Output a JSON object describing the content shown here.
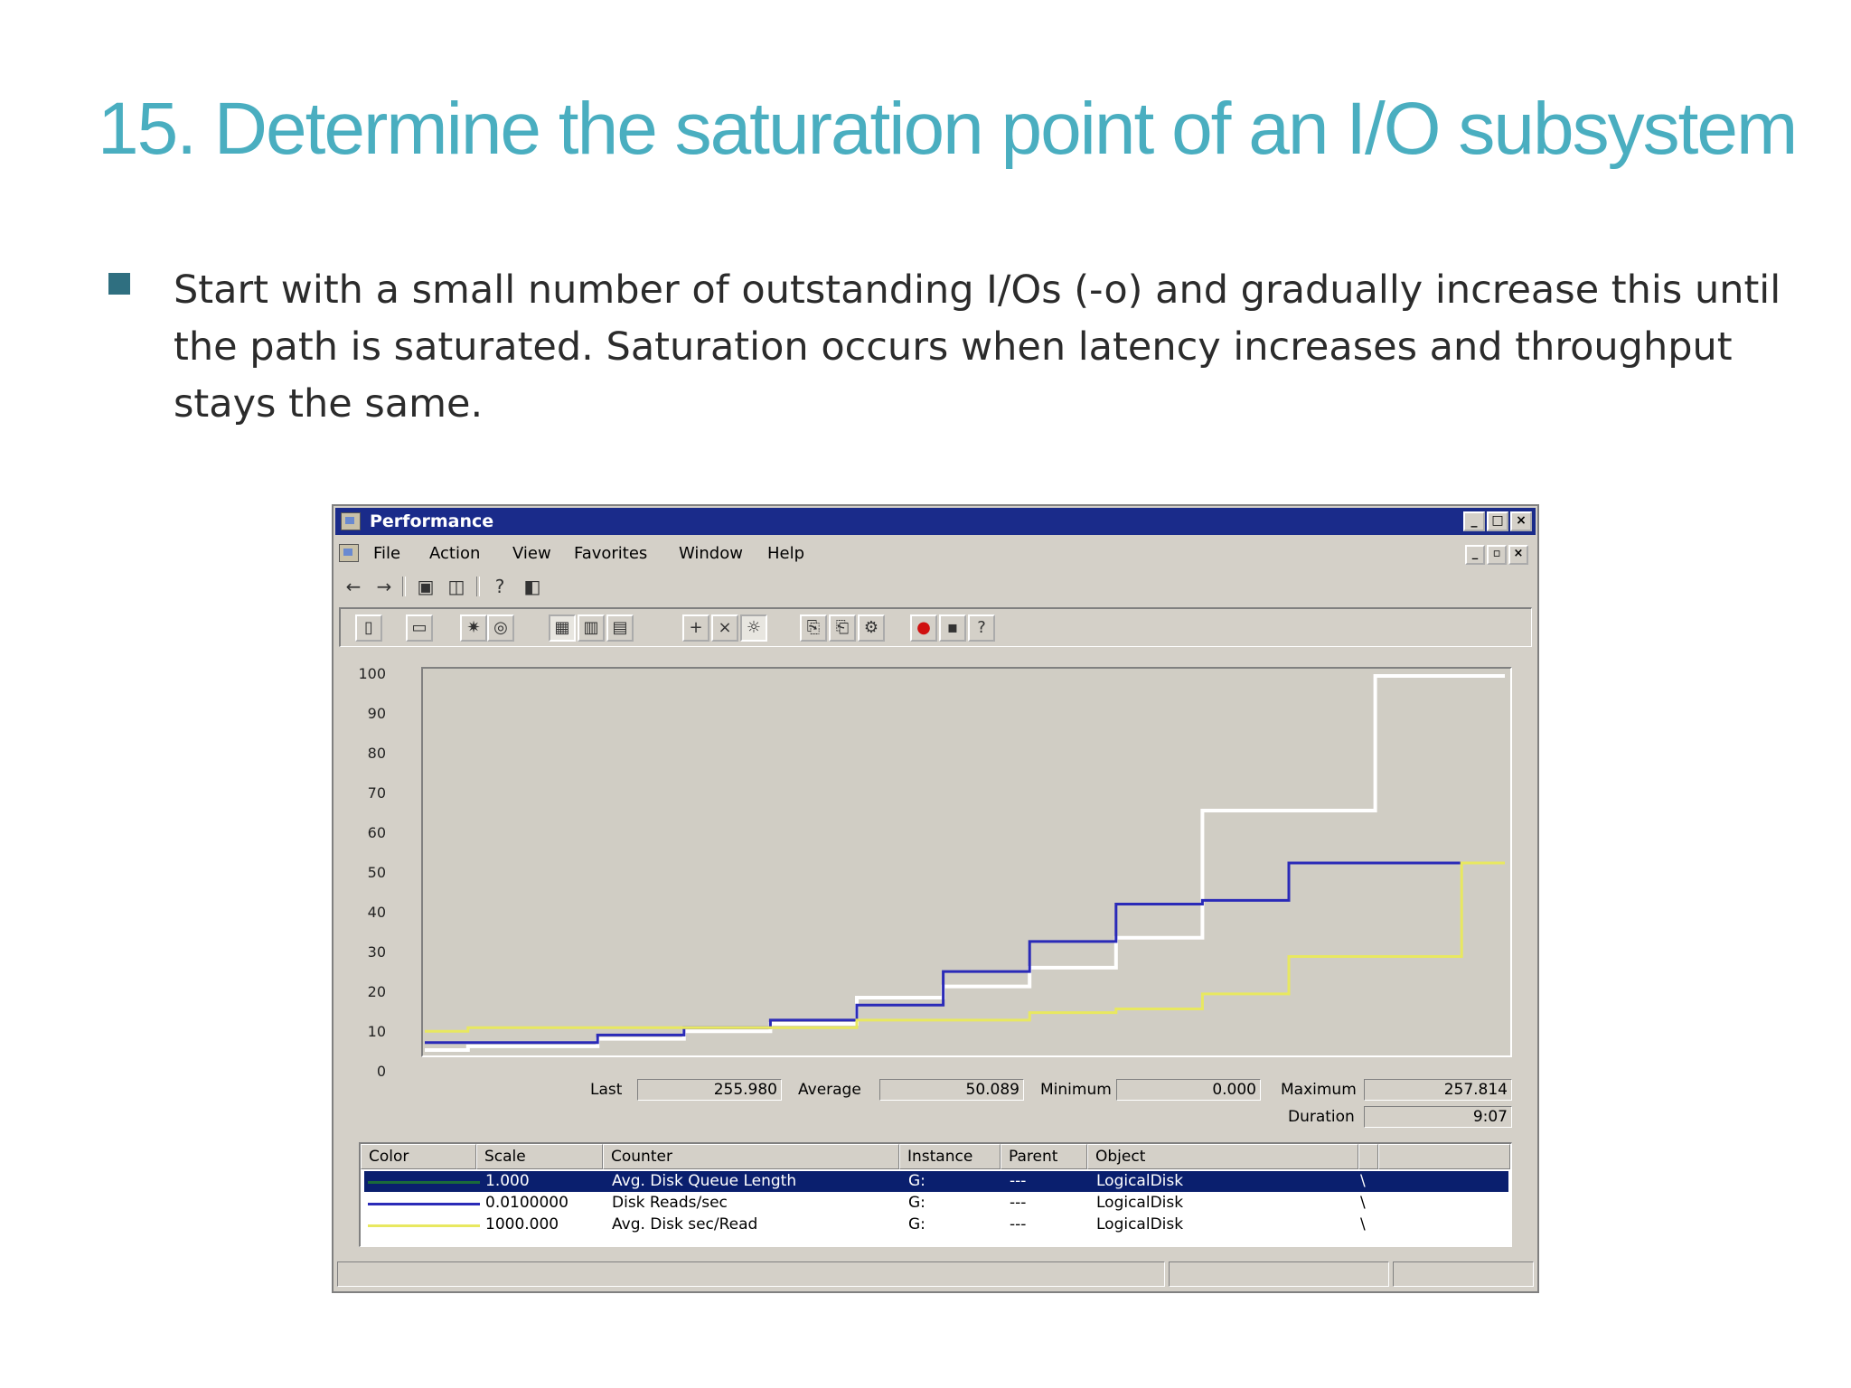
{
  "slide": {
    "title": "15. Determine the saturation point of an I/O subsystem",
    "bullet": "Start with a small number of outstanding I/Os (-o) and gradually increase this until the path is saturated. Saturation occurs when latency increases and throughput stays the same."
  },
  "window": {
    "title": "Performance",
    "menu": [
      "File",
      "Action",
      "View",
      "Favorites",
      "Window",
      "Help"
    ]
  },
  "stats": {
    "last_label": "Last",
    "last_value": "255.980",
    "average_label": "Average",
    "average_value": "50.089",
    "minimum_label": "Minimum",
    "minimum_value": "0.000",
    "maximum_label": "Maximum",
    "maximum_value": "257.814",
    "duration_label": "Duration",
    "duration_value": "9:07"
  },
  "legend": {
    "headers": [
      "Color",
      "Scale",
      "Counter",
      "Instance",
      "Parent",
      "Object"
    ],
    "rows": [
      {
        "color": "#1a6a3a",
        "scale": "1.000",
        "counter": "Avg. Disk Queue Length",
        "instance": "G:",
        "parent": "---",
        "object": "LogicalDisk",
        "extra": "\\",
        "selected": true
      },
      {
        "color": "#2a2ab8",
        "scale": "0.0100000",
        "counter": "Disk Reads/sec",
        "instance": "G:",
        "parent": "---",
        "object": "LogicalDisk",
        "extra": "\\",
        "selected": false
      },
      {
        "color": "#e8e860",
        "scale": "1000.000",
        "counter": "Avg. Disk sec/Read",
        "instance": "G:",
        "parent": "---",
        "object": "LogicalDisk",
        "extra": "\\",
        "selected": false
      }
    ]
  },
  "chart_data": {
    "type": "line",
    "ylim": [
      0,
      100
    ],
    "yticks": [
      "100",
      "90",
      "80",
      "70",
      "60",
      "50",
      "40",
      "30",
      "20",
      "10",
      "0"
    ],
    "x": [
      0,
      4,
      8,
      12,
      16,
      20,
      24,
      28,
      32,
      36,
      40,
      44,
      48,
      52,
      56,
      60,
      64,
      68,
      72,
      76,
      80,
      84,
      88,
      92,
      96,
      100
    ],
    "series": [
      {
        "color": "#ffffff",
        "values": [
          0,
          1,
          1,
          1,
          3,
          3,
          5,
          5,
          7,
          7,
          14,
          14,
          17,
          17,
          22,
          22,
          30,
          30,
          64,
          64,
          64,
          64,
          100,
          100,
          100,
          100
        ]
      },
      {
        "color": "#2a2ab8",
        "values": [
          2,
          2,
          2,
          2,
          4,
          4,
          6,
          6,
          8,
          8,
          12,
          12,
          21,
          21,
          29,
          29,
          39,
          39,
          40,
          40,
          50,
          50,
          50,
          50,
          50,
          50
        ]
      },
      {
        "color": "#e8e860",
        "values": [
          5,
          6,
          6,
          6,
          6,
          6,
          6,
          6,
          6,
          6,
          8,
          8,
          8,
          8,
          10,
          10,
          11,
          11,
          15,
          15,
          25,
          25,
          25,
          25,
          50,
          50
        ]
      }
    ]
  }
}
